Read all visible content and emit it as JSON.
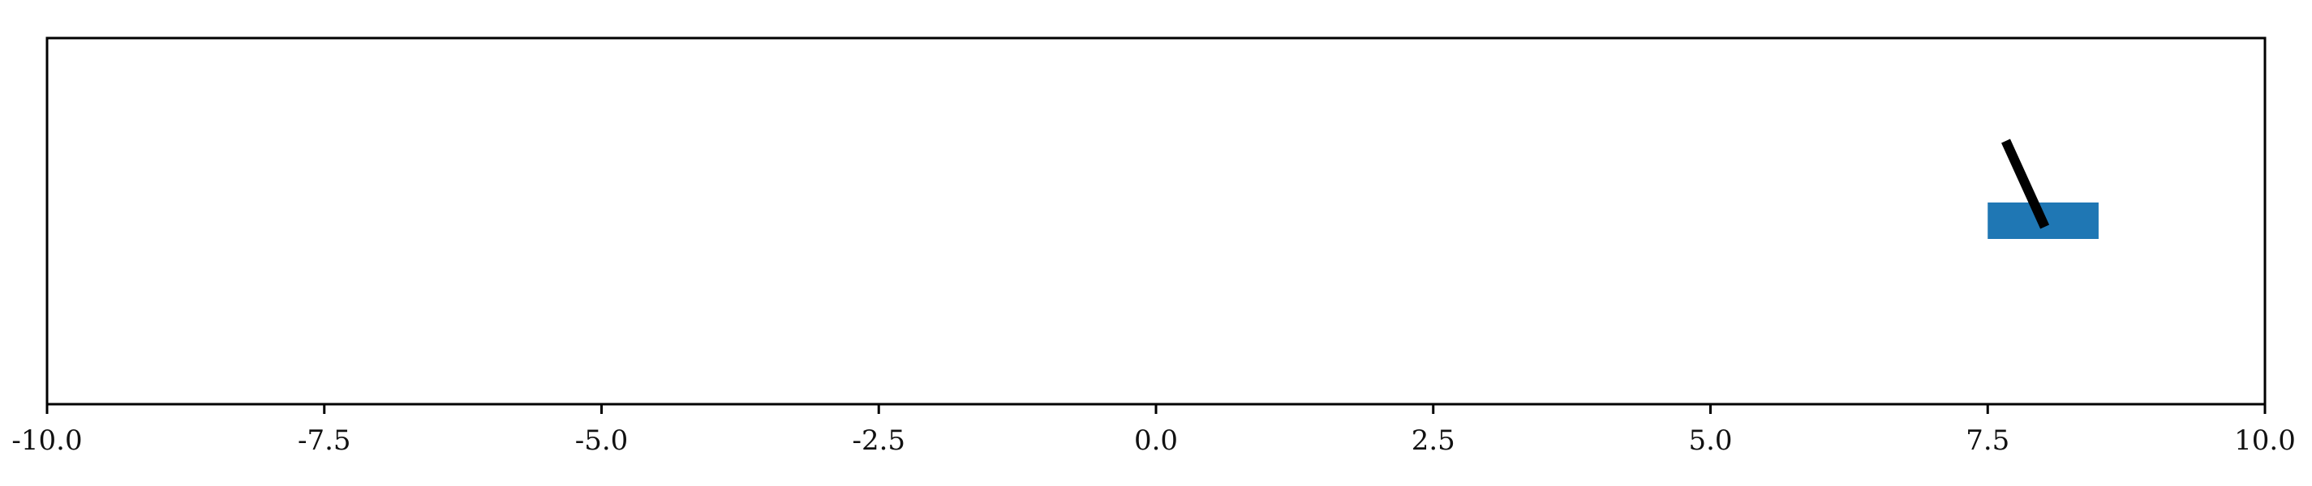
{
  "chart_data": {
    "type": "cartpole",
    "title": "",
    "xlabel": "",
    "ylabel": "",
    "xlim": [
      -10.0,
      10.0
    ],
    "x_ticks": [
      -10.0,
      -7.5,
      -5.0,
      -2.5,
      0.0,
      2.5,
      5.0,
      7.5,
      10.0
    ],
    "x_tick_labels": [
      "-10.0",
      "-7.5",
      "-5.0",
      "-2.5",
      "0.0",
      "2.5",
      "5.0",
      "7.5",
      "10.0"
    ],
    "cart": {
      "x_center": 8.0,
      "width": 1.0,
      "color": "#1f77b4"
    },
    "pole": {
      "pivot_x": 8.0,
      "tip_x": 7.67,
      "color": "#000000"
    },
    "grid": false,
    "show_y_axis_ticks": false
  }
}
